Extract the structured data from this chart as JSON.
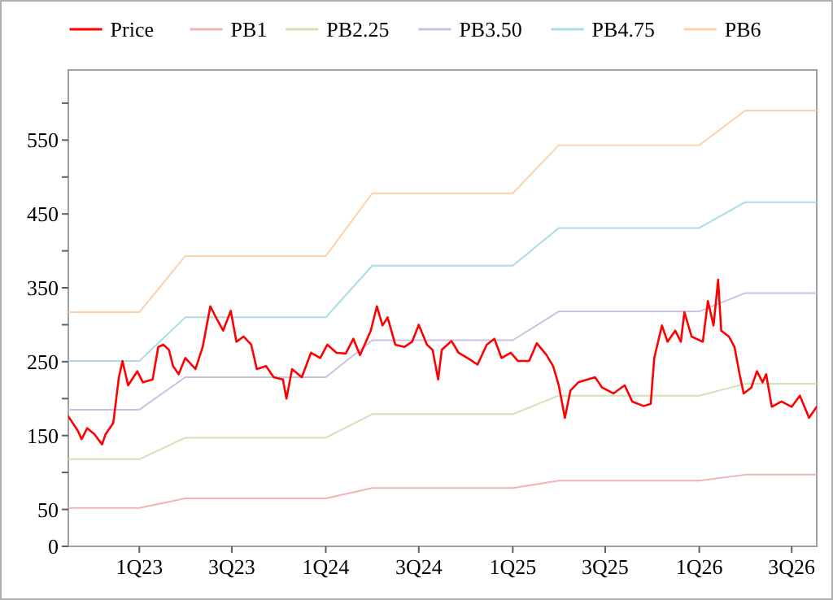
{
  "chart_data": {
    "type": "line",
    "legend": "top",
    "grid": false,
    "line_style": "solid",
    "marker": "none",
    "xlim": [
      "2022-08-15",
      "2026-08-19"
    ],
    "xticks": [
      {
        "value": "2023-01-01",
        "label": "1Q23"
      },
      {
        "value": "2023-07-01",
        "label": "3Q23"
      },
      {
        "value": "2024-01-01",
        "label": "1Q24"
      },
      {
        "value": "2024-07-01",
        "label": "3Q24"
      },
      {
        "value": "2025-01-01",
        "label": "1Q25"
      },
      {
        "value": "2025-07-01",
        "label": "3Q25"
      },
      {
        "value": "2026-01-01",
        "label": "1Q26"
      },
      {
        "value": "2026-07-01",
        "label": "3Q26"
      }
    ],
    "ylim": [
      0,
      645
    ],
    "yticks": [
      0,
      50,
      {
        "value": 100,
        "label": null
      },
      150,
      {
        "value": 200,
        "label": null
      },
      250,
      {
        "value": 300,
        "label": null
      },
      350,
      {
        "value": 400,
        "label": null
      },
      450,
      {
        "value": 500,
        "label": null
      },
      550,
      {
        "value": 600,
        "label": null
      }
    ],
    "series": [
      {
        "name": "Price",
        "color": "#ff0000",
        "x": [
          "2022-08-15",
          "2022-09-03",
          "2022-09-10",
          "2022-09-21",
          "2022-10-05",
          "2022-10-20",
          "2022-10-27",
          "2022-11-11",
          "2022-11-22",
          "2022-11-29",
          "2022-12-10",
          "2022-12-28",
          "2023-01-08",
          "2023-01-27",
          "2023-02-07",
          "2023-02-17",
          "2023-02-28",
          "2023-03-08",
          "2023-03-19",
          "2023-04-01",
          "2023-04-21",
          "2023-05-05",
          "2023-05-20",
          "2023-06-03",
          "2023-06-14",
          "2023-06-29",
          "2023-07-10",
          "2023-07-24",
          "2023-08-08",
          "2023-08-19",
          "2023-09-06",
          "2023-09-21",
          "2023-10-09",
          "2023-10-16",
          "2023-10-27",
          "2023-11-15",
          "2023-12-03",
          "2023-12-21",
          "2024-01-04",
          "2024-01-22",
          "2024-02-09",
          "2024-02-24",
          "2024-03-08",
          "2024-03-29",
          "2024-04-10",
          "2024-04-21",
          "2024-05-01",
          "2024-05-16",
          "2024-06-03",
          "2024-06-18",
          "2024-07-01",
          "2024-07-17",
          "2024-07-28",
          "2024-08-08",
          "2024-08-15",
          "2024-09-03",
          "2024-09-17",
          "2024-10-09",
          "2024-10-24",
          "2024-11-11",
          "2024-11-26",
          "2024-12-10",
          "2024-12-28",
          "2025-01-11",
          "2025-02-02",
          "2025-02-17",
          "2025-03-08",
          "2025-03-21",
          "2025-04-01",
          "2025-04-13",
          "2025-04-24",
          "2025-05-09",
          "2025-06-11",
          "2025-06-25",
          "2025-07-17",
          "2025-08-08",
          "2025-08-23",
          "2025-09-14",
          "2025-09-28",
          "2025-10-05",
          "2025-10-20",
          "2025-10-31",
          "2025-11-15",
          "2025-11-26",
          "2025-12-03",
          "2025-12-17",
          "2026-01-08",
          "2026-01-18",
          "2026-01-29",
          "2026-02-07",
          "2026-02-13",
          "2026-02-28",
          "2026-03-11",
          "2026-03-21",
          "2026-03-29",
          "2026-04-13",
          "2026-04-24",
          "2026-05-05",
          "2026-05-12",
          "2026-05-23",
          "2026-06-11",
          "2026-07-01",
          "2026-07-17",
          "2026-08-04",
          "2026-08-19"
        ],
        "values": [
          176,
          156,
          145,
          160,
          152,
          138,
          152,
          167,
          229,
          251,
          218,
          237,
          222,
          226,
          270,
          273,
          266,
          244,
          233,
          255,
          240,
          270,
          325,
          306,
          292,
          319,
          277,
          284,
          273,
          240,
          244,
          229,
          226,
          200,
          240,
          229,
          262,
          255,
          273,
          262,
          261,
          281,
          259,
          292,
          325,
          299,
          310,
          273,
          270,
          277,
          300,
          273,
          266,
          226,
          266,
          278,
          262,
          253,
          246,
          273,
          281,
          255,
          262,
          251,
          251,
          275,
          259,
          244,
          218,
          174,
          211,
          222,
          229,
          215,
          207,
          218,
          196,
          190,
          193,
          255,
          299,
          277,
          292,
          277,
          317,
          284,
          277,
          332,
          299,
          361,
          292,
          284,
          270,
          233,
          207,
          215,
          237,
          222,
          233,
          189,
          196,
          189,
          204,
          174,
          189
        ]
      },
      {
        "name": "PB1",
        "color": "#f0b4b4",
        "x": [
          "2022-08-15",
          "2023-01-01",
          "2023-04-01",
          "2024-01-01",
          "2024-04-01",
          "2025-01-01",
          "2025-04-01",
          "2026-01-01",
          "2026-04-01",
          "2026-08-19"
        ],
        "values": [
          52,
          52,
          65,
          65,
          79,
          79,
          89,
          89,
          97,
          97
        ]
      },
      {
        "name": "PB2.25",
        "color": "#cfe3b4",
        "x": [
          "2022-08-15",
          "2023-01-01",
          "2023-04-01",
          "2024-01-01",
          "2024-04-01",
          "2025-01-01",
          "2025-04-01",
          "2026-01-01",
          "2026-04-01",
          "2026-08-19"
        ],
        "values": [
          118,
          118,
          147,
          147,
          179,
          179,
          204,
          204,
          220,
          220
        ]
      },
      {
        "name": "PB3.50",
        "color": "#cbc0e2",
        "x": [
          "2022-08-15",
          "2023-01-01",
          "2023-04-01",
          "2024-01-01",
          "2024-04-01",
          "2025-01-01",
          "2025-04-01",
          "2026-01-01",
          "2026-04-01",
          "2026-08-19"
        ],
        "values": [
          185,
          185,
          229,
          229,
          279,
          279,
          318,
          318,
          343,
          343
        ]
      },
      {
        "name": "PB4.75",
        "color": "#a9dbe8",
        "x": [
          "2022-08-15",
          "2023-01-01",
          "2023-04-01",
          "2024-01-01",
          "2024-04-01",
          "2025-01-01",
          "2025-04-01",
          "2026-01-01",
          "2026-04-01",
          "2026-08-19"
        ],
        "values": [
          251,
          251,
          310,
          310,
          380,
          380,
          431,
          431,
          466,
          466
        ]
      },
      {
        "name": "PB6",
        "color": "#fcd2ad",
        "x": [
          "2022-08-15",
          "2023-01-01",
          "2023-04-01",
          "2024-01-01",
          "2024-04-01",
          "2025-01-01",
          "2025-04-01",
          "2026-01-01",
          "2026-04-01",
          "2026-08-19"
        ],
        "values": [
          317,
          317,
          393,
          393,
          478,
          478,
          543,
          543,
          590,
          590
        ]
      }
    ]
  }
}
